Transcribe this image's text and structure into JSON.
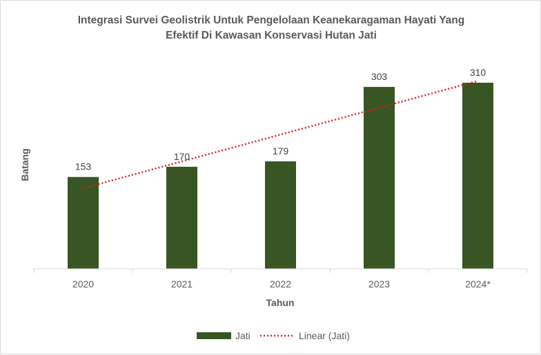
{
  "chart_data": {
    "type": "bar",
    "title_lines": [
      "Integrasi Survei Geolistrik Untuk Pengelolaan Keanekaragaman Hayati Yang",
      "Efektif Di Kawasan Konservasi Hutan Jati"
    ],
    "xlabel": "Tahun",
    "ylabel": "Batang",
    "categories": [
      "2020",
      "2021",
      "2022",
      "2023",
      "2024*"
    ],
    "series": [
      {
        "name": "Jati",
        "values": [
          153,
          170,
          179,
          303,
          310
        ],
        "color": "#375623"
      }
    ],
    "trendline": {
      "name": "Linear (Jati)",
      "type": "linear",
      "color": "#e31a1c",
      "style": "dotted"
    },
    "ylim": [
      0,
      310
    ],
    "y_axis_visible": false,
    "grid": false,
    "legend_position": "bottom",
    "data_labels": true
  }
}
